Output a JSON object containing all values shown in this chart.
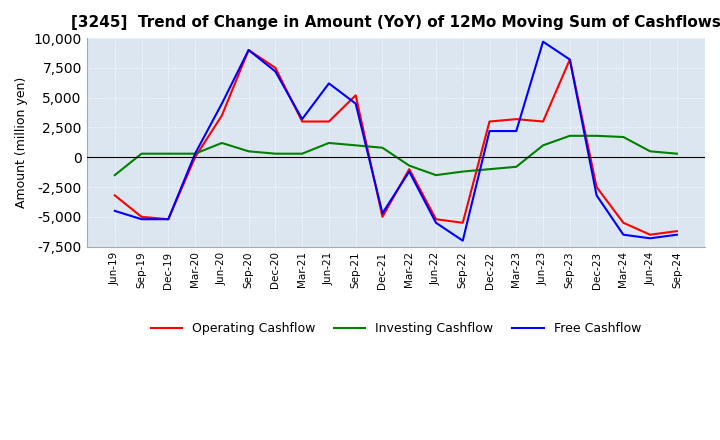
{
  "title": "[3245]  Trend of Change in Amount (YoY) of 12Mo Moving Sum of Cashflows",
  "ylabel": "Amount (million yen)",
  "ylim": [
    -7500,
    10000
  ],
  "yticks": [
    -7500,
    -5000,
    -2500,
    0,
    2500,
    5000,
    7500,
    10000
  ],
  "background_color": "#ffffff",
  "plot_bg_color": "#dce6f1",
  "grid_color": "#ffffff",
  "x_labels": [
    "Jun-19",
    "Sep-19",
    "Dec-19",
    "Mar-20",
    "Jun-20",
    "Sep-20",
    "Dec-20",
    "Mar-21",
    "Jun-21",
    "Sep-21",
    "Dec-21",
    "Mar-22",
    "Jun-22",
    "Sep-22",
    "Dec-22",
    "Mar-23",
    "Jun-23",
    "Sep-23",
    "Dec-23",
    "Mar-24",
    "Jun-24",
    "Sep-24"
  ],
  "operating_cashflow": [
    -3200,
    -5000,
    -5200,
    0,
    3500,
    9000,
    7500,
    3000,
    3000,
    5200,
    -5000,
    -1000,
    -5200,
    -5500,
    3000,
    3200,
    3000,
    8200,
    -2500,
    -5500,
    -6500,
    -6200
  ],
  "investing_cashflow": [
    -1500,
    300,
    300,
    300,
    1200,
    500,
    300,
    300,
    1200,
    1000,
    800,
    -700,
    -1500,
    -1200,
    -1000,
    -800,
    1000,
    1800,
    1800,
    1700,
    500,
    300
  ],
  "free_cashflow": [
    -4500,
    -5200,
    -5200,
    300,
    4500,
    9000,
    7200,
    3200,
    6200,
    4500,
    -4700,
    -1200,
    -5500,
    -7000,
    2200,
    2200,
    9700,
    8200,
    -3200,
    -6500,
    -6800,
    -6500
  ],
  "line_colors": {
    "operating": "#ff0000",
    "investing": "#008000",
    "free": "#0000ff"
  },
  "legend_labels": [
    "Operating Cashflow",
    "Investing Cashflow",
    "Free Cashflow"
  ]
}
